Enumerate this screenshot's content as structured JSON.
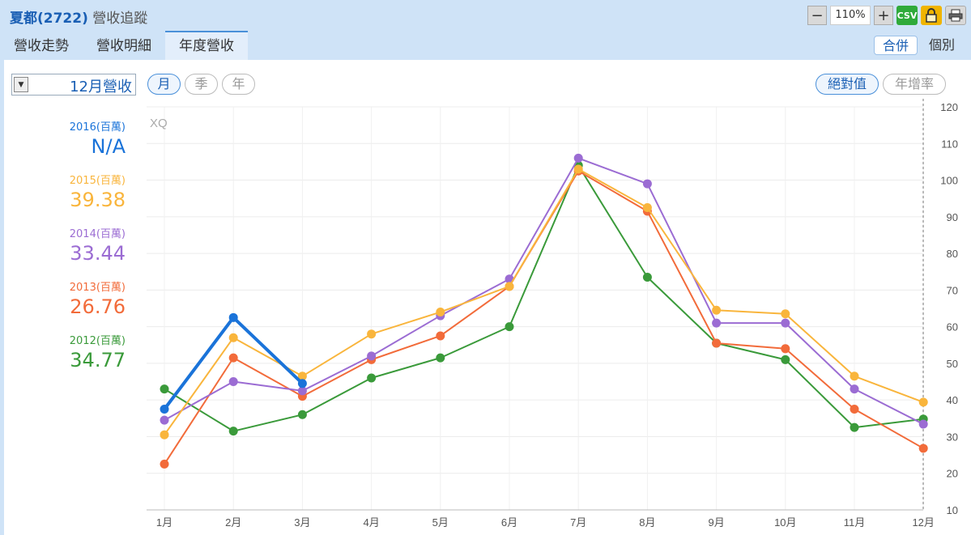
{
  "header": {
    "stock": "夏都(2722)",
    "title": "營收追蹤",
    "zoom": "110%",
    "csv_label": "CSV"
  },
  "tabs": [
    {
      "label": "營收走勢",
      "active": false
    },
    {
      "label": "營收明細",
      "active": false
    },
    {
      "label": "年度營收",
      "active": true
    }
  ],
  "view_toggle": [
    {
      "label": "合併",
      "active": true
    },
    {
      "label": "個別",
      "active": false
    }
  ],
  "controls": {
    "month_select": "12月營收",
    "period": [
      {
        "label": "月",
        "active": true
      },
      {
        "label": "季",
        "active": false
      },
      {
        "label": "年",
        "active": false
      }
    ],
    "mode": [
      {
        "label": "絕對值",
        "active": true
      },
      {
        "label": "年增率",
        "active": false
      }
    ]
  },
  "legend": [
    {
      "label": "2016(百萬)",
      "value": "N/A",
      "color": "#1a73d9"
    },
    {
      "label": "2015(百萬)",
      "value": "39.38",
      "color": "#f9b53c"
    },
    {
      "label": "2014(百萬)",
      "value": "33.44",
      "color": "#9b6cd3"
    },
    {
      "label": "2013(百萬)",
      "value": "26.76",
      "color": "#f26b3a"
    },
    {
      "label": "2012(百萬)",
      "value": "34.77",
      "color": "#3a9a3a"
    }
  ],
  "chart_data": {
    "type": "line",
    "watermark": "XQ",
    "categories": [
      "1月",
      "2月",
      "3月",
      "4月",
      "5月",
      "6月",
      "7月",
      "8月",
      "9月",
      "10月",
      "11月",
      "12月"
    ],
    "ylim": [
      10,
      120
    ],
    "yticks": [
      10,
      20,
      30,
      40,
      50,
      60,
      70,
      80,
      90,
      100,
      110,
      120
    ],
    "y_axis_position": "right",
    "grid": true,
    "series": [
      {
        "name": "2012(百萬)",
        "color": "#3a9a3a",
        "values": [
          43,
          31.5,
          36,
          46,
          51.5,
          60,
          104,
          73.5,
          55.5,
          51,
          32.5,
          34.8
        ]
      },
      {
        "name": "2013(百萬)",
        "color": "#f26b3a",
        "values": [
          22.5,
          51.5,
          41,
          51,
          57.5,
          71,
          102.5,
          91.5,
          55.5,
          54,
          37.5,
          26.8
        ]
      },
      {
        "name": "2014(百萬)",
        "color": "#9b6cd3",
        "values": [
          34.5,
          45,
          42.5,
          52,
          63,
          73,
          106,
          99,
          61,
          61,
          43,
          33.4
        ]
      },
      {
        "name": "2015(百萬)",
        "color": "#f9b53c",
        "values": [
          30.5,
          57,
          46.5,
          58,
          64,
          71,
          103,
          92.5,
          64.5,
          63.5,
          46.5,
          39.4
        ]
      },
      {
        "name": "2016(百萬)",
        "color": "#1a73d9",
        "values": [
          37.5,
          62.5,
          44.5,
          null,
          null,
          null,
          null,
          null,
          null,
          null,
          null,
          null
        ]
      }
    ]
  }
}
